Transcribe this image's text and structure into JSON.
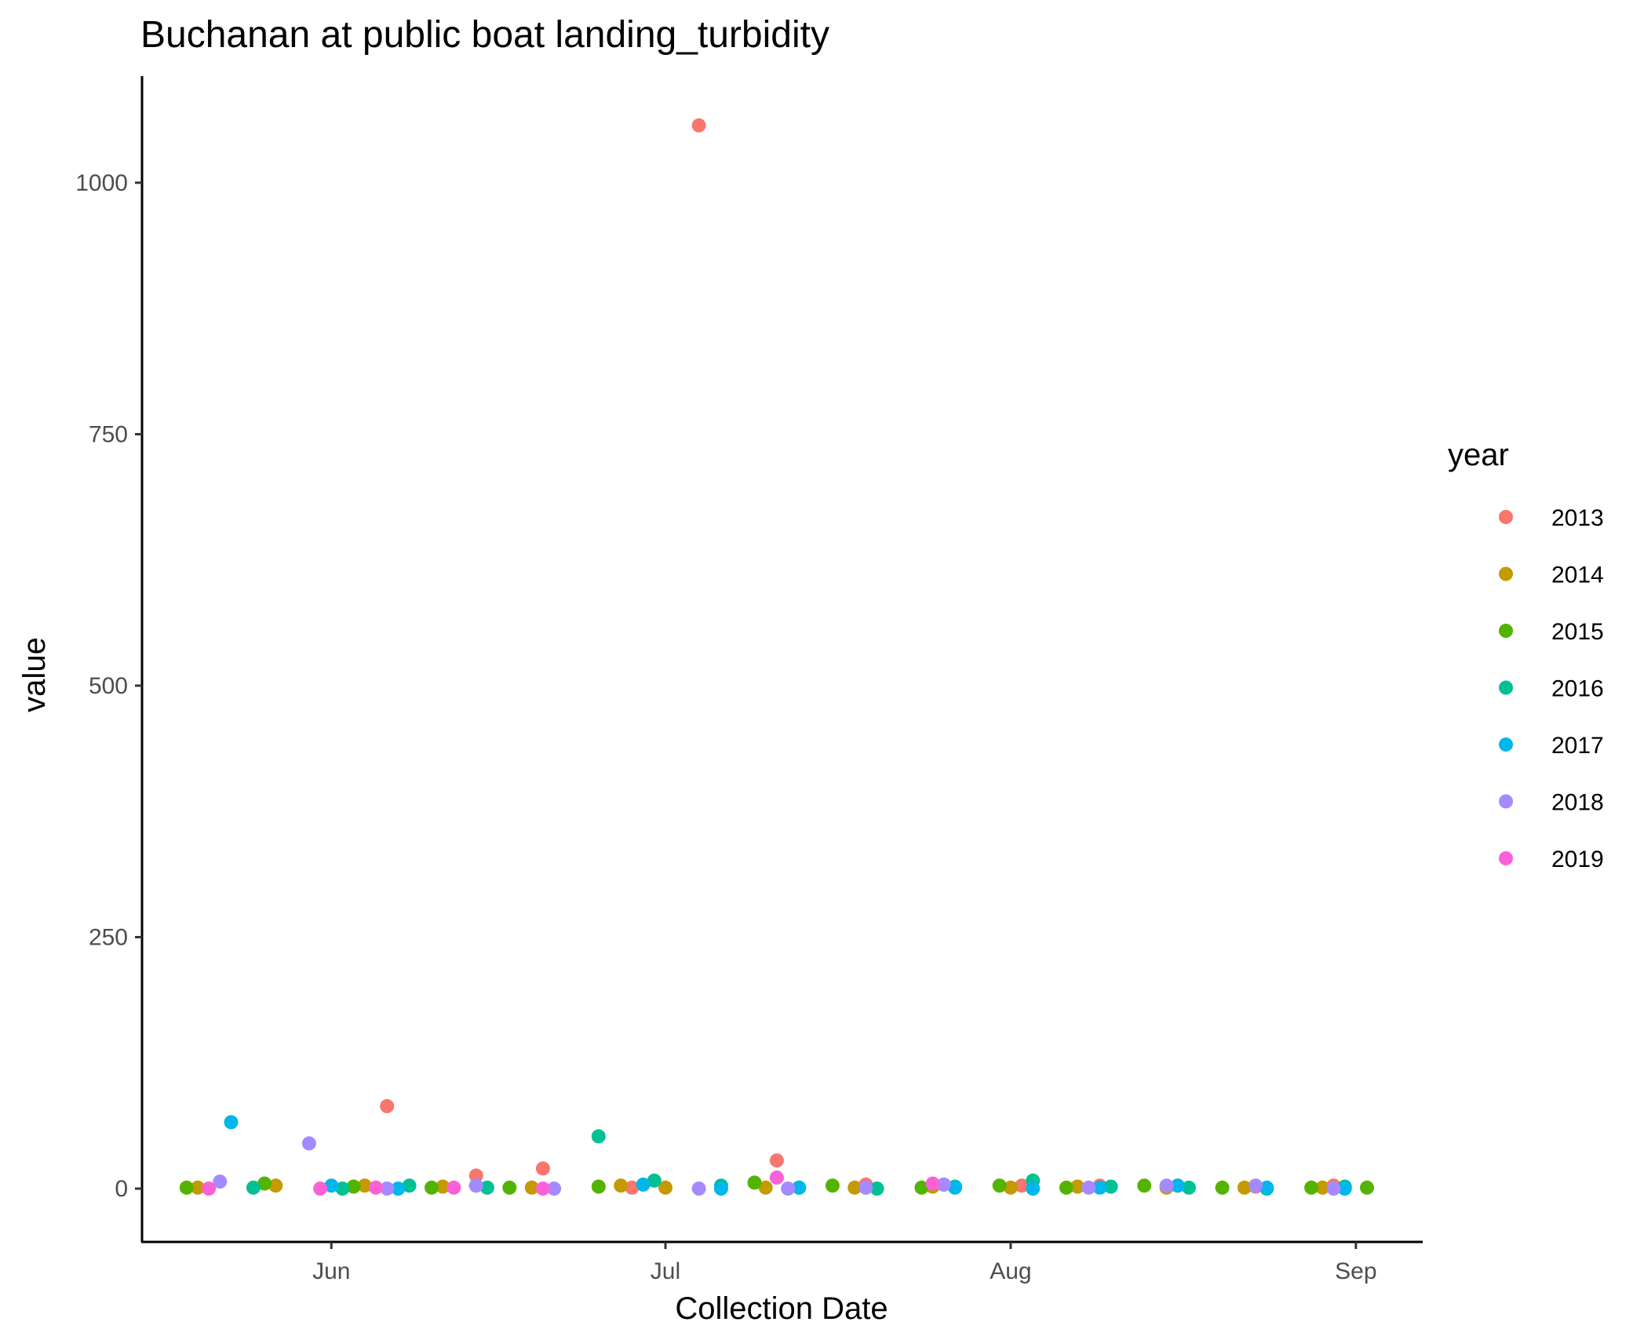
{
  "chart_data": {
    "type": "scatter",
    "title": "Buchanan at public boat landing_turbidity",
    "xlabel": "Collection Date",
    "ylabel": "value",
    "x_ticks": [
      "Jun",
      "Jul",
      "Aug",
      "Sep"
    ],
    "x_tick_dates": [
      "06-01",
      "07-01",
      "08-01",
      "09-01"
    ],
    "xlim": [
      "05-15",
      "09-07"
    ],
    "y_ticks": [
      "0",
      "250",
      "500",
      "750",
      "1000"
    ],
    "y_tick_values": [
      0,
      250,
      500,
      750,
      1000
    ],
    "ylim": [
      -53,
      1106
    ],
    "grid": false,
    "legend": {
      "title": "year",
      "position": "right"
    },
    "series": [
      {
        "name": "2013",
        "color": "#F8766D",
        "points": [
          [
            "06-06",
            82
          ],
          [
            "06-14",
            13
          ],
          [
            "06-20",
            20
          ],
          [
            "06-28",
            1
          ],
          [
            "07-04",
            1057
          ],
          [
            "07-11",
            28
          ],
          [
            "07-19",
            4
          ],
          [
            "07-26",
            4
          ],
          [
            "08-02",
            3
          ],
          [
            "08-09",
            3
          ],
          [
            "08-16",
            3
          ],
          [
            "08-23",
            2
          ],
          [
            "08-30",
            3
          ]
        ]
      },
      {
        "name": "2014",
        "color": "#C49A00",
        "points": [
          [
            "05-20",
            1
          ],
          [
            "05-27",
            3
          ],
          [
            "06-04",
            3
          ],
          [
            "06-11",
            2
          ],
          [
            "06-19",
            1
          ],
          [
            "06-27",
            3
          ],
          [
            "07-01",
            1
          ],
          [
            "07-10",
            1
          ],
          [
            "07-18",
            1
          ],
          [
            "07-25",
            2
          ],
          [
            "08-01",
            1
          ],
          [
            "08-07",
            2
          ],
          [
            "08-15",
            1
          ],
          [
            "08-22",
            1
          ],
          [
            "08-29",
            1
          ]
        ]
      },
      {
        "name": "2015",
        "color": "#53B400",
        "points": [
          [
            "05-19",
            1
          ],
          [
            "05-26",
            5
          ],
          [
            "06-03",
            2
          ],
          [
            "06-10",
            1
          ],
          [
            "06-17",
            1
          ],
          [
            "06-25",
            2
          ],
          [
            "07-09",
            6
          ],
          [
            "07-16",
            3
          ],
          [
            "07-24",
            1
          ],
          [
            "07-31",
            3
          ],
          [
            "08-06",
            1
          ],
          [
            "08-13",
            3
          ],
          [
            "08-20",
            1
          ],
          [
            "08-28",
            1
          ],
          [
            "09-02",
            1
          ]
        ]
      },
      {
        "name": "2016",
        "color": "#00C094",
        "points": [
          [
            "05-25",
            1
          ],
          [
            "06-02",
            0
          ],
          [
            "06-08",
            3
          ],
          [
            "06-15",
            1
          ],
          [
            "06-25",
            52
          ],
          [
            "06-30",
            8
          ],
          [
            "07-06",
            3
          ],
          [
            "07-13",
            1
          ],
          [
            "07-20",
            0
          ],
          [
            "07-27",
            2
          ],
          [
            "08-03",
            8
          ],
          [
            "08-10",
            2
          ],
          [
            "08-17",
            1
          ],
          [
            "08-24",
            0
          ],
          [
            "08-31",
            2
          ]
        ]
      },
      {
        "name": "2017",
        "color": "#00B6EB",
        "points": [
          [
            "05-23",
            66
          ],
          [
            "06-01",
            3
          ],
          [
            "06-07",
            0
          ],
          [
            "06-14",
            3
          ],
          [
            "06-29",
            4
          ],
          [
            "07-06",
            0
          ],
          [
            "07-13",
            1
          ],
          [
            "07-19",
            1
          ],
          [
            "07-27",
            1
          ],
          [
            "08-03",
            0
          ],
          [
            "08-09",
            1
          ],
          [
            "08-16",
            3
          ],
          [
            "08-24",
            1
          ],
          [
            "08-31",
            0
          ]
        ]
      },
      {
        "name": "2018",
        "color": "#A58AFF",
        "points": [
          [
            "05-22",
            7
          ],
          [
            "05-30",
            45
          ],
          [
            "06-06",
            0
          ],
          [
            "06-14",
            3
          ],
          [
            "06-21",
            0
          ],
          [
            "07-04",
            0
          ],
          [
            "07-12",
            0
          ],
          [
            "07-19",
            1
          ],
          [
            "07-26",
            4
          ],
          [
            "08-08",
            1
          ],
          [
            "08-15",
            3
          ],
          [
            "08-23",
            3
          ],
          [
            "08-30",
            0
          ]
        ]
      },
      {
        "name": "2019",
        "color": "#FB61D7",
        "points": [
          [
            "05-21",
            0
          ],
          [
            "05-31",
            0
          ],
          [
            "06-05",
            1
          ],
          [
            "06-12",
            1
          ],
          [
            "06-20",
            0
          ],
          [
            "07-11",
            11
          ],
          [
            "07-25",
            5
          ]
        ]
      }
    ]
  }
}
